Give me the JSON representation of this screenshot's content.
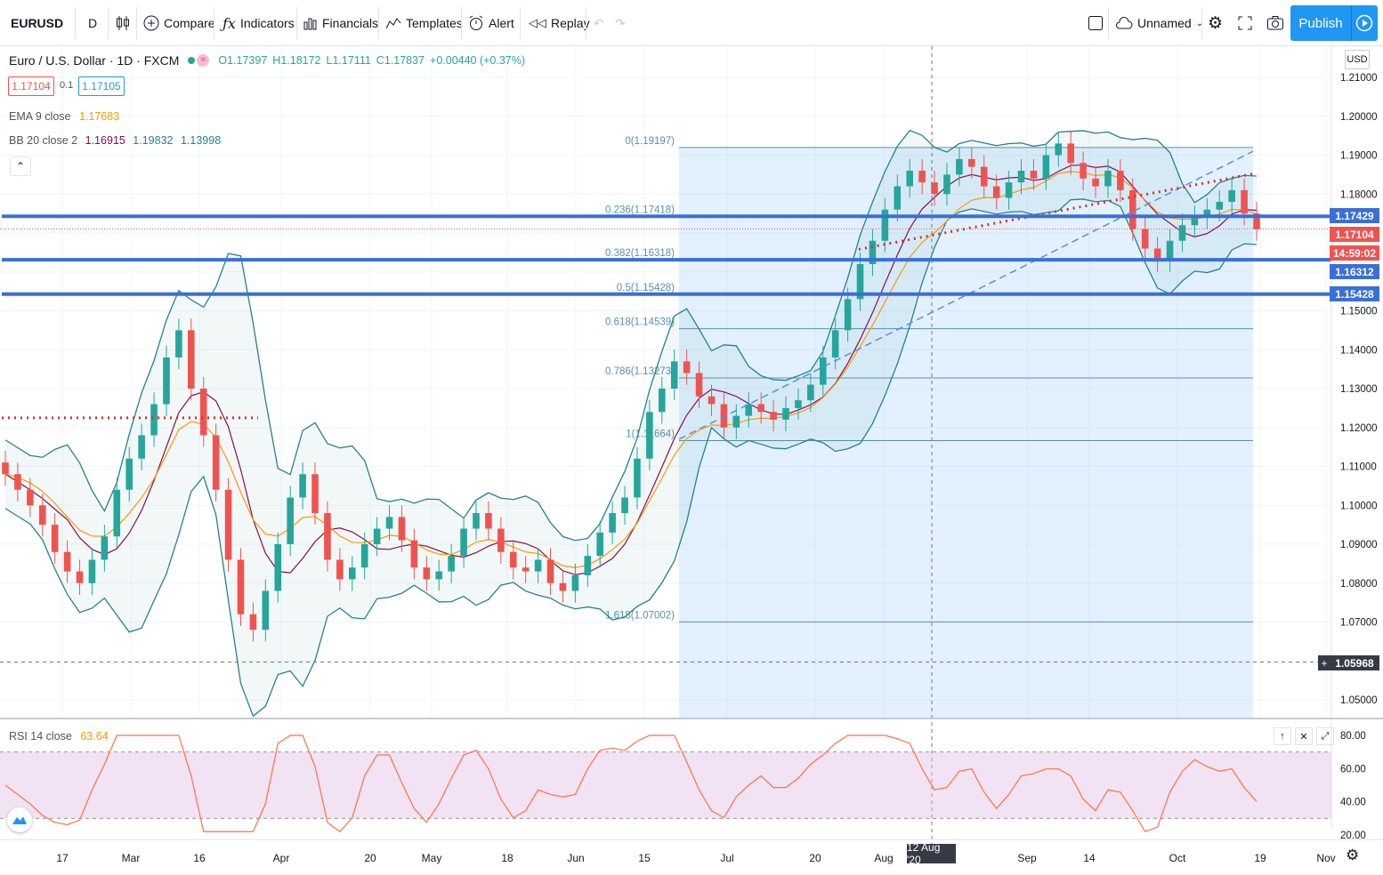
{
  "toolbar": {
    "symbol": "EURUSD",
    "interval": "D",
    "compare": "Compare",
    "indicators": "Indicators",
    "financials": "Financials",
    "templates": "Templates",
    "alert": "Alert",
    "replay": "Replay",
    "layout_name": "Unnamed",
    "publish": "Publish"
  },
  "legend": {
    "title": "Euro / U.S. Dollar · 1D · FXCM",
    "open": "O1.17397",
    "high": "H1.18172",
    "low": "L1.17111",
    "close": "C1.17837",
    "change": "+0.00440 (+0.37%)",
    "sell": "1.17104",
    "spread": "0.1",
    "buy": "1.17105",
    "ema_label": "EMA 9 close",
    "ema_value": "1.17683",
    "bb_label": "BB 20 close 2",
    "bb_basis": "1.16915",
    "bb_upper": "1.19832",
    "bb_lower": "1.13998"
  },
  "currency": "USD",
  "price_axis": [
    "1.21000",
    "1.20000",
    "1.19000",
    "1.18000",
    "1.17000",
    "1.16000",
    "1.15000",
    "1.14000",
    "1.13000",
    "1.12000",
    "1.11000",
    "1.10000",
    "1.09000",
    "1.08000",
    "1.07000",
    "1.06000",
    "1.05000"
  ],
  "price_labels": {
    "level1": "1.17429",
    "current": "1.17104",
    "countdown": "14:59:02",
    "level2": "1.16312",
    "level3": "1.15428",
    "crosshair": "1.05968"
  },
  "fib_labels": [
    "0(1.19197)",
    "0.236(1.17418)",
    "0.382(1.16318)",
    "0.5(1.15428)",
    "0.618(1.14539)",
    "0.786(1.13273)",
    "1(1.11664)",
    "1.618(1.07002)"
  ],
  "time_axis": [
    "17",
    "Mar",
    "16",
    "Apr",
    "20",
    "May",
    "18",
    "Jun",
    "15",
    "Jul",
    "20",
    "Aug",
    "Sep",
    "14",
    "Oct",
    "19",
    "Nov"
  ],
  "crosshair_date": "12 Aug '20",
  "rsi": {
    "label": "RSI 14 close",
    "value": "63.64",
    "axis": [
      "80.00",
      "60.00",
      "40.00",
      "20.00"
    ]
  },
  "colors": {
    "up": "#26a69a",
    "down": "#ef5350",
    "ema": "#ff9800",
    "bb_basis": "#880e4f",
    "bb_band": "#26828a",
    "level_line": "#3a6fd8",
    "dotted_red": "#d32f2f",
    "accent": "#2196f3"
  },
  "chart_data": {
    "type": "candlestick",
    "symbol": "EURUSD",
    "interval": "1D",
    "ylim": [
      1.05,
      1.21
    ],
    "x_period": "Feb 2020 - Oct 2020",
    "close_path": [
      1.108,
      1.104,
      1.1,
      1.095,
      1.088,
      1.083,
      1.08,
      1.086,
      1.092,
      1.104,
      1.112,
      1.118,
      1.126,
      1.138,
      1.145,
      1.13,
      1.118,
      1.104,
      1.086,
      1.072,
      1.068,
      1.078,
      1.09,
      1.102,
      1.108,
      1.098,
      1.086,
      1.081,
      1.084,
      1.09,
      1.094,
      1.097,
      1.091,
      1.084,
      1.081,
      1.083,
      1.087,
      1.094,
      1.098,
      1.094,
      1.088,
      1.084,
      1.083,
      1.086,
      1.08,
      1.078,
      1.082,
      1.087,
      1.093,
      1.098,
      1.102,
      1.112,
      1.124,
      1.13,
      1.137,
      1.134,
      1.128,
      1.126,
      1.12,
      1.123,
      1.126,
      1.124,
      1.122,
      1.125,
      1.127,
      1.131,
      1.138,
      1.145,
      1.153,
      1.162,
      1.168,
      1.176,
      1.182,
      1.186,
      1.183,
      1.18,
      1.185,
      1.189,
      1.187,
      1.182,
      1.179,
      1.183,
      1.186,
      1.184,
      1.19,
      1.193,
      1.188,
      1.184,
      1.182,
      1.186,
      1.181,
      1.171,
      1.166,
      1.163,
      1.168,
      1.172,
      1.174,
      1.176,
      1.178,
      1.181,
      1.175,
      1.171
    ],
    "levels": [
      1.17429,
      1.16312,
      1.15428
    ],
    "fibonacci": {
      "0": 1.19197,
      "0.236": 1.17418,
      "0.382": 1.16318,
      "0.5": 1.15428,
      "0.618": 1.14539,
      "0.786": 1.13273,
      "1": 1.11664,
      "1.618": 1.07002
    },
    "rsi_ylim": [
      20,
      80
    ],
    "rsi_bands": [
      30,
      70
    ]
  }
}
